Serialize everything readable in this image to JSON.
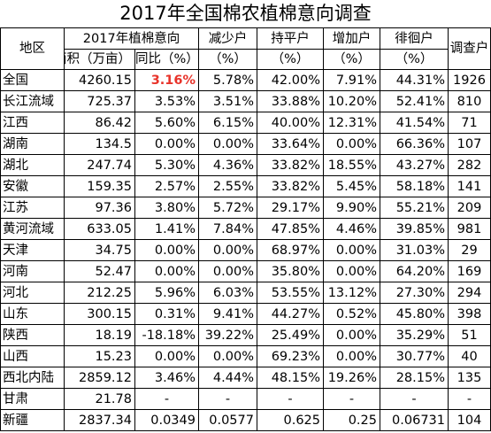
{
  "title": "2017年全国棉农植棉意向调查",
  "headers": {
    "region": "地区",
    "intent": "2017年植棉意向",
    "area": "面积（万亩）",
    "yoy": "同比（%）",
    "decrease": "减少户",
    "keep": "持平户",
    "increase": "增加户",
    "hesitate": "徘徊户",
    "surveyed": "调查户",
    "pct": "（%）"
  },
  "rows": [
    {
      "region": "全国",
      "area": "4260.15",
      "yoy": "3.16%",
      "decrease": "5.78%",
      "keep": "42.00%",
      "increase": "7.91%",
      "hesitate": "44.31%",
      "surveyed": "1926",
      "yoy_highlight": true
    },
    {
      "region": "长江流域",
      "area": "725.37",
      "yoy": "3.53%",
      "decrease": "3.51%",
      "keep": "33.88%",
      "increase": "10.20%",
      "hesitate": "52.41%",
      "surveyed": "810"
    },
    {
      "region": "江西",
      "area": "86.42",
      "yoy": "5.60%",
      "decrease": "6.15%",
      "keep": "40.00%",
      "increase": "12.31%",
      "hesitate": "41.54%",
      "surveyed": "71"
    },
    {
      "region": "湖南",
      "area": "134.5",
      "yoy": "0.00%",
      "decrease": "0.00%",
      "keep": "33.64%",
      "increase": "0.00%",
      "hesitate": "66.36%",
      "surveyed": "107"
    },
    {
      "region": "湖北",
      "area": "247.74",
      "yoy": "5.30%",
      "decrease": "4.36%",
      "keep": "33.82%",
      "increase": "18.55%",
      "hesitate": "43.27%",
      "surveyed": "282"
    },
    {
      "region": "安徽",
      "area": "159.35",
      "yoy": "2.57%",
      "decrease": "2.55%",
      "keep": "33.82%",
      "increase": "5.45%",
      "hesitate": "58.18%",
      "surveyed": "141"
    },
    {
      "region": "江苏",
      "area": "97.36",
      "yoy": "3.80%",
      "decrease": "5.72%",
      "keep": "29.17%",
      "increase": "9.90%",
      "hesitate": "55.21%",
      "surveyed": "209"
    },
    {
      "region": "黄河流域",
      "area": "633.05",
      "yoy": "1.41%",
      "decrease": "7.84%",
      "keep": "47.85%",
      "increase": "4.46%",
      "hesitate": "39.85%",
      "surveyed": "981"
    },
    {
      "region": "天津",
      "area": "34.75",
      "yoy": "0.00%",
      "decrease": "0.00%",
      "keep": "68.97%",
      "increase": "0.00%",
      "hesitate": "31.03%",
      "surveyed": "29"
    },
    {
      "region": "河南",
      "area": "52.47",
      "yoy": "0.00%",
      "decrease": "0.00%",
      "keep": "35.80%",
      "increase": "0.00%",
      "hesitate": "64.20%",
      "surveyed": "169"
    },
    {
      "region": "河北",
      "area": "212.25",
      "yoy": "5.96%",
      "decrease": "6.03%",
      "keep": "53.55%",
      "increase": "13.12%",
      "hesitate": "27.30%",
      "surveyed": "294"
    },
    {
      "region": "山东",
      "area": "300.15",
      "yoy": "0.31%",
      "decrease": "9.41%",
      "keep": "44.27%",
      "increase": "0.52%",
      "hesitate": "45.80%",
      "surveyed": "398"
    },
    {
      "region": "陕西",
      "area": "18.19",
      "yoy": "-18.18%",
      "decrease": "39.22%",
      "keep": "25.49%",
      "increase": "0.00%",
      "hesitate": "35.29%",
      "surveyed": "51"
    },
    {
      "region": "山西",
      "area": "15.23",
      "yoy": "0.00%",
      "decrease": "0.00%",
      "keep": "69.23%",
      "increase": "0.00%",
      "hesitate": "30.77%",
      "surveyed": "40"
    },
    {
      "region": "西北内陆",
      "area": "2859.12",
      "yoy": "3.46%",
      "decrease": "4.44%",
      "keep": "48.15%",
      "increase": "19.26%",
      "hesitate": "28.15%",
      "surveyed": "135"
    },
    {
      "region": "甘肃",
      "area": "21.78",
      "yoy": "-",
      "decrease": "-",
      "keep": "-",
      "increase": "-",
      "hesitate": "-",
      "surveyed": "-",
      "center_dash": true
    },
    {
      "region": "新疆",
      "area": "2837.34",
      "yoy": "0.0349",
      "decrease": "0.0577",
      "keep": "0.625",
      "increase": "0.25",
      "hesitate": "0.06731",
      "surveyed": "104"
    }
  ],
  "colors": {
    "highlight": "#e8332a",
    "grid": "#000000",
    "background": "#ffffff"
  }
}
